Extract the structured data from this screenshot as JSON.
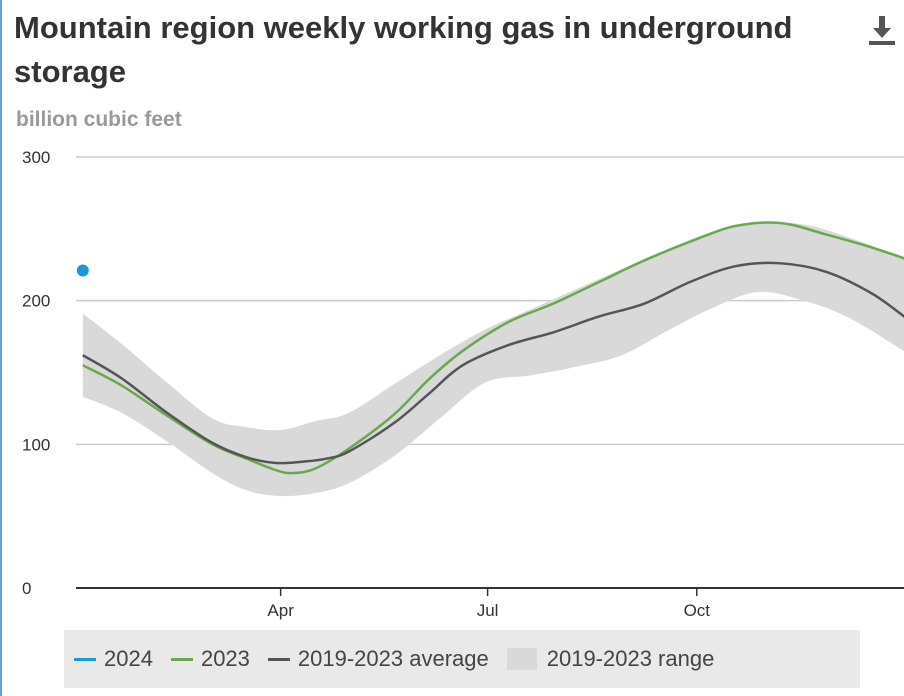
{
  "header": {
    "title": "Mountain region weekly working gas in underground storage",
    "download_icon": "download-icon"
  },
  "colors": {
    "s2024": "#1a9ad6",
    "s2023": "#6aa84f",
    "average": "#555555",
    "range": "#d9d9d9",
    "grid": "#cccccc",
    "axis": "#333333"
  },
  "chart_data": {
    "type": "line",
    "title": "Mountain region weekly working gas in underground storage",
    "ylabel": "billion cubic feet",
    "xlabel": "",
    "ylim": [
      0,
      300
    ],
    "yticks": [
      0,
      100,
      200,
      300
    ],
    "xlim": [
      0,
      365
    ],
    "xticks": [
      {
        "day": 90,
        "label": "Apr"
      },
      {
        "day": 181,
        "label": "Jul"
      },
      {
        "day": 273,
        "label": "Oct"
      }
    ],
    "grid": true,
    "legend_position": "bottom",
    "series": [
      {
        "name": "2024",
        "type": "scatter",
        "points": [
          {
            "x": 3,
            "y": 221
          }
        ]
      },
      {
        "name": "2023",
        "type": "line",
        "points": [
          {
            "x": 3,
            "y": 155
          },
          {
            "x": 20,
            "y": 141
          },
          {
            "x": 40,
            "y": 120
          },
          {
            "x": 60,
            "y": 100
          },
          {
            "x": 75,
            "y": 90
          },
          {
            "x": 88,
            "y": 82
          },
          {
            "x": 95,
            "y": 80
          },
          {
            "x": 105,
            "y": 83
          },
          {
            "x": 120,
            "y": 97
          },
          {
            "x": 140,
            "y": 121
          },
          {
            "x": 155,
            "y": 145
          },
          {
            "x": 170,
            "y": 165
          },
          {
            "x": 190,
            "y": 185
          },
          {
            "x": 210,
            "y": 198
          },
          {
            "x": 230,
            "y": 213
          },
          {
            "x": 250,
            "y": 228
          },
          {
            "x": 270,
            "y": 241
          },
          {
            "x": 290,
            "y": 252
          },
          {
            "x": 310,
            "y": 254
          },
          {
            "x": 330,
            "y": 246
          },
          {
            "x": 350,
            "y": 237
          },
          {
            "x": 365,
            "y": 229
          }
        ]
      },
      {
        "name": "2019-2023 average",
        "type": "line",
        "points": [
          {
            "x": 3,
            "y": 162
          },
          {
            "x": 20,
            "y": 146
          },
          {
            "x": 40,
            "y": 122
          },
          {
            "x": 60,
            "y": 101
          },
          {
            "x": 75,
            "y": 91
          },
          {
            "x": 88,
            "y": 87
          },
          {
            "x": 100,
            "y": 88
          },
          {
            "x": 110,
            "y": 90
          },
          {
            "x": 120,
            "y": 95
          },
          {
            "x": 140,
            "y": 115
          },
          {
            "x": 155,
            "y": 135
          },
          {
            "x": 170,
            "y": 155
          },
          {
            "x": 190,
            "y": 169
          },
          {
            "x": 210,
            "y": 178
          },
          {
            "x": 230,
            "y": 189
          },
          {
            "x": 250,
            "y": 198
          },
          {
            "x": 270,
            "y": 213
          },
          {
            "x": 290,
            "y": 224
          },
          {
            "x": 310,
            "y": 226
          },
          {
            "x": 330,
            "y": 220
          },
          {
            "x": 350,
            "y": 205
          },
          {
            "x": 365,
            "y": 188
          }
        ]
      },
      {
        "name": "2019-2023 range",
        "type": "area",
        "upper": [
          {
            "x": 3,
            "y": 191
          },
          {
            "x": 20,
            "y": 170
          },
          {
            "x": 40,
            "y": 143
          },
          {
            "x": 60,
            "y": 118
          },
          {
            "x": 75,
            "y": 112
          },
          {
            "x": 90,
            "y": 110
          },
          {
            "x": 105,
            "y": 116
          },
          {
            "x": 120,
            "y": 122
          },
          {
            "x": 140,
            "y": 142
          },
          {
            "x": 160,
            "y": 162
          },
          {
            "x": 180,
            "y": 180
          },
          {
            "x": 200,
            "y": 194
          },
          {
            "x": 220,
            "y": 208
          },
          {
            "x": 240,
            "y": 222
          },
          {
            "x": 260,
            "y": 236
          },
          {
            "x": 280,
            "y": 248
          },
          {
            "x": 300,
            "y": 254
          },
          {
            "x": 320,
            "y": 253
          },
          {
            "x": 340,
            "y": 244
          },
          {
            "x": 365,
            "y": 229
          }
        ],
        "lower": [
          {
            "x": 3,
            "y": 133
          },
          {
            "x": 20,
            "y": 122
          },
          {
            "x": 40,
            "y": 102
          },
          {
            "x": 60,
            "y": 80
          },
          {
            "x": 75,
            "y": 68
          },
          {
            "x": 90,
            "y": 64
          },
          {
            "x": 105,
            "y": 66
          },
          {
            "x": 120,
            "y": 73
          },
          {
            "x": 140,
            "y": 92
          },
          {
            "x": 160,
            "y": 118
          },
          {
            "x": 180,
            "y": 143
          },
          {
            "x": 200,
            "y": 148
          },
          {
            "x": 220,
            "y": 154
          },
          {
            "x": 240,
            "y": 162
          },
          {
            "x": 260,
            "y": 179
          },
          {
            "x": 280,
            "y": 195
          },
          {
            "x": 300,
            "y": 206
          },
          {
            "x": 320,
            "y": 200
          },
          {
            "x": 340,
            "y": 188
          },
          {
            "x": 365,
            "y": 164
          }
        ]
      }
    ]
  },
  "legend": {
    "items": [
      {
        "label": "2024",
        "kind": "line",
        "color": "#1a9ad6"
      },
      {
        "label": "2023",
        "kind": "line",
        "color": "#6aa84f"
      },
      {
        "label": "2019-2023 average",
        "kind": "line",
        "color": "#555555"
      },
      {
        "label": "2019-2023 range",
        "kind": "area",
        "color": "#d9d9d9"
      }
    ]
  }
}
